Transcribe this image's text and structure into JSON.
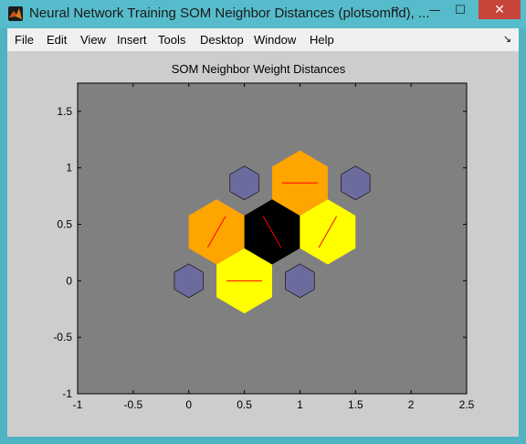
{
  "window": {
    "title": "Neural Network Training SOM Neighbor Distances (plotsomnd), ...",
    "close_label": "✕",
    "minimize_label": "—",
    "maximize_label": "☐",
    "resize_glyph": "⇔"
  },
  "menu": {
    "items": [
      {
        "key": "file",
        "label": "File"
      },
      {
        "key": "edit",
        "label": "Edit"
      },
      {
        "key": "view",
        "label": "View"
      },
      {
        "key": "insert",
        "label": "Insert"
      },
      {
        "key": "tools",
        "label": "Tools"
      },
      {
        "key": "desktop",
        "label": "Desktop"
      },
      {
        "key": "window",
        "label": "Window"
      },
      {
        "key": "help",
        "label": "Help"
      }
    ],
    "dock_arrow": "↘"
  },
  "chart_data": {
    "type": "hexagonal-som-neighbor-distances",
    "title": "SOM Neighbor Weight Distances",
    "xlim": [
      -1,
      2.5
    ],
    "ylim": [
      -1,
      1.75
    ],
    "xticks": [
      -1,
      -0.5,
      0,
      0.5,
      1,
      1.5,
      2,
      2.5
    ],
    "xtick_labels": [
      "-1",
      "-0.5",
      "0",
      "0.5",
      "1",
      "1.5",
      "2",
      "2.5"
    ],
    "yticks": [
      -1,
      -0.5,
      0,
      0.5,
      1,
      1.5
    ],
    "ytick_labels": [
      "-1",
      "-0.5",
      "0",
      "0.5",
      "1",
      "1.5"
    ],
    "axes_background": "#808080",
    "neurons": [
      {
        "name": "n1",
        "x": 0,
        "y": 0
      },
      {
        "name": "n2",
        "x": 1,
        "y": 0
      },
      {
        "name": "n3",
        "x": 0.5,
        "y": 0.866
      },
      {
        "name": "n4",
        "x": 1.5,
        "y": 0.866
      }
    ],
    "neuron_color": "#6b6b9e",
    "neighbor_patches": [
      {
        "between": [
          "n1",
          "n2"
        ],
        "x": 0.5,
        "y": 0,
        "color": "#ffff00",
        "line_angle_deg": 0
      },
      {
        "between": [
          "n1",
          "n3"
        ],
        "x": 0.25,
        "y": 0.433,
        "color": "#ffa500",
        "line_angle_deg": 60
      },
      {
        "between": [
          "n2",
          "n3"
        ],
        "x": 0.75,
        "y": 0.433,
        "color": "#000000",
        "line_angle_deg": -60
      },
      {
        "between": [
          "n2",
          "n4"
        ],
        "x": 1.25,
        "y": 0.433,
        "color": "#ffff00",
        "line_angle_deg": 60
      },
      {
        "between": [
          "n3",
          "n4"
        ],
        "x": 1,
        "y": 0.866,
        "color": "#ffa500",
        "line_angle_deg": 0
      }
    ],
    "connection_line_color": "#ff0000"
  }
}
